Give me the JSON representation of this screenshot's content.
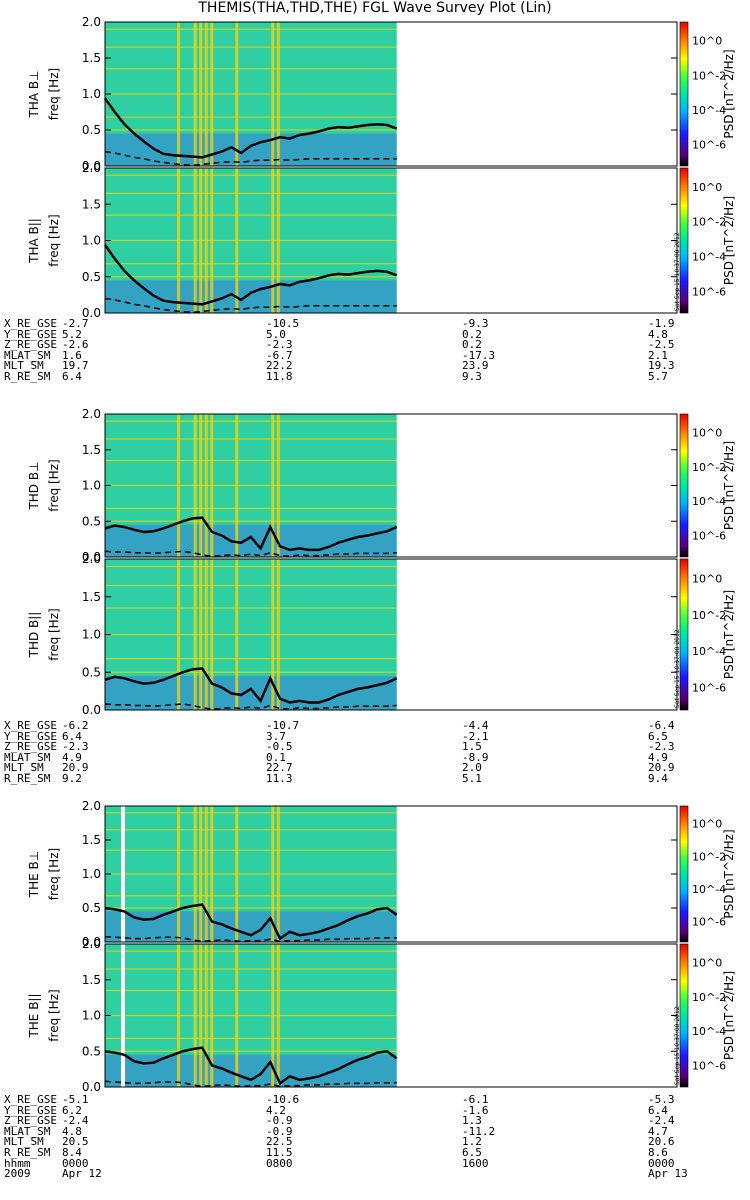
{
  "title": "THEMIS(THA,THD,THE) FGL Wave Survey Plot (Lin)",
  "colorbar": {
    "tick_labels": [
      "10^0",
      "10^-2",
      "10^-4",
      "10^-6"
    ],
    "label": "PSD [nT^2/Hz]"
  },
  "side_stamp": "Sat Sep 15 10:37:08 2012",
  "chart_data": [
    {
      "type": "heatmap",
      "ylabel": "THA B⊥",
      "ylabel2": "freq [Hz]",
      "ylim": [
        0,
        2.0
      ],
      "yticks": [
        "0.0",
        "0.5",
        "1.0",
        "1.5",
        "2.0"
      ],
      "data_extent_fraction": 0.51,
      "solid_line": [
        0.94,
        0.75,
        0.58,
        0.45,
        0.34,
        0.24,
        0.17,
        0.15,
        0.14,
        0.13,
        0.12,
        0.16,
        0.2,
        0.26,
        0.18,
        0.28,
        0.33,
        0.36,
        0.4,
        0.38,
        0.43,
        0.45,
        0.48,
        0.52,
        0.54,
        0.53,
        0.55,
        0.57,
        0.58,
        0.57,
        0.52
      ],
      "dashed_line": [
        0.2,
        0.18,
        0.15,
        0.12,
        0.1,
        0.07,
        0.05,
        0.03,
        0.02,
        0.01,
        0.02,
        0.04,
        0.05,
        0.06,
        0.05,
        0.07,
        0.08,
        0.08,
        0.09,
        0.08,
        0.09,
        0.1,
        0.1,
        0.1,
        0.1,
        0.1,
        0.1,
        0.1,
        0.1,
        0.1,
        0.1
      ]
    },
    {
      "type": "heatmap",
      "ylabel": "THA B||",
      "ylabel2": "freq [Hz]",
      "ylim": [
        0,
        2.0
      ],
      "yticks": [
        "0.0",
        "0.5",
        "1.0",
        "1.5",
        "2.0"
      ],
      "data_extent_fraction": 0.51,
      "solid_line": [
        0.94,
        0.75,
        0.58,
        0.45,
        0.34,
        0.24,
        0.17,
        0.15,
        0.14,
        0.13,
        0.12,
        0.16,
        0.2,
        0.26,
        0.18,
        0.28,
        0.33,
        0.36,
        0.4,
        0.38,
        0.43,
        0.45,
        0.48,
        0.52,
        0.54,
        0.53,
        0.55,
        0.57,
        0.58,
        0.57,
        0.52
      ],
      "dashed_line": [
        0.2,
        0.18,
        0.15,
        0.12,
        0.1,
        0.07,
        0.05,
        0.03,
        0.02,
        0.01,
        0.02,
        0.04,
        0.05,
        0.06,
        0.05,
        0.07,
        0.08,
        0.08,
        0.09,
        0.08,
        0.09,
        0.1,
        0.1,
        0.1,
        0.1,
        0.1,
        0.1,
        0.1,
        0.1,
        0.1,
        0.1
      ]
    },
    {
      "type": "heatmap",
      "ylabel": "THD B⊥",
      "ylabel2": "freq [Hz]",
      "ylim": [
        0,
        2.0
      ],
      "yticks": [
        "0.0",
        "0.5",
        "1.0",
        "1.5",
        "2.0"
      ],
      "data_extent_fraction": 0.51,
      "solid_line": [
        0.4,
        0.44,
        0.42,
        0.38,
        0.35,
        0.36,
        0.4,
        0.45,
        0.5,
        0.54,
        0.55,
        0.35,
        0.3,
        0.22,
        0.2,
        0.28,
        0.12,
        0.42,
        0.15,
        0.1,
        0.12,
        0.1,
        0.1,
        0.14,
        0.2,
        0.24,
        0.28,
        0.3,
        0.33,
        0.36,
        0.42
      ],
      "dashed_line": [
        0.08,
        0.07,
        0.07,
        0.06,
        0.06,
        0.05,
        0.06,
        0.07,
        0.08,
        0.06,
        0.03,
        0.01,
        0.02,
        0.03,
        0.02,
        0.04,
        0.02,
        0.06,
        0.02,
        0.01,
        0.03,
        0.02,
        0.02,
        0.03,
        0.04,
        0.04,
        0.05,
        0.05,
        0.05,
        0.05,
        0.06
      ]
    },
    {
      "type": "heatmap",
      "ylabel": "THD B||",
      "ylabel2": "freq [Hz]",
      "ylim": [
        0,
        2.0
      ],
      "yticks": [
        "0.0",
        "0.5",
        "1.0",
        "1.5",
        "2.0"
      ],
      "data_extent_fraction": 0.51,
      "solid_line": [
        0.4,
        0.44,
        0.42,
        0.38,
        0.35,
        0.36,
        0.4,
        0.45,
        0.5,
        0.54,
        0.55,
        0.35,
        0.3,
        0.22,
        0.2,
        0.28,
        0.12,
        0.42,
        0.15,
        0.1,
        0.12,
        0.1,
        0.1,
        0.14,
        0.2,
        0.24,
        0.28,
        0.3,
        0.33,
        0.36,
        0.42
      ],
      "dashed_line": [
        0.08,
        0.07,
        0.07,
        0.06,
        0.06,
        0.05,
        0.06,
        0.07,
        0.08,
        0.06,
        0.03,
        0.01,
        0.02,
        0.03,
        0.02,
        0.04,
        0.02,
        0.06,
        0.02,
        0.01,
        0.03,
        0.02,
        0.02,
        0.03,
        0.04,
        0.04,
        0.05,
        0.05,
        0.05,
        0.05,
        0.06
      ]
    },
    {
      "type": "heatmap",
      "ylabel": "THE B⊥",
      "ylabel2": "freq [Hz]",
      "ylim": [
        0,
        2.0
      ],
      "yticks": [
        "0.0",
        "0.5",
        "1.0",
        "1.5",
        "2.0"
      ],
      "data_extent_fraction": 0.51,
      "solid_line": [
        0.5,
        0.48,
        0.45,
        0.36,
        0.33,
        0.34,
        0.4,
        0.45,
        0.5,
        0.53,
        0.55,
        0.3,
        0.26,
        0.2,
        0.15,
        0.1,
        0.18,
        0.35,
        0.05,
        0.15,
        0.1,
        0.12,
        0.15,
        0.2,
        0.25,
        0.32,
        0.38,
        0.42,
        0.48,
        0.5,
        0.4
      ],
      "dashed_line": [
        0.08,
        0.07,
        0.06,
        0.05,
        0.05,
        0.06,
        0.07,
        0.07,
        0.06,
        0.03,
        0.01,
        0.02,
        0.03,
        0.02,
        0.01,
        0.02,
        0.02,
        0.04,
        0.01,
        0.02,
        0.02,
        0.03,
        0.03,
        0.04,
        0.04,
        0.05,
        0.05,
        0.05,
        0.06,
        0.06,
        0.06
      ]
    },
    {
      "type": "heatmap",
      "ylabel": "THE B||",
      "ylabel2": "freq [Hz]",
      "ylim": [
        0,
        2.0
      ],
      "yticks": [
        "0.0",
        "0.5",
        "1.0",
        "1.5",
        "2.0"
      ],
      "data_extent_fraction": 0.51,
      "solid_line": [
        0.5,
        0.48,
        0.45,
        0.36,
        0.33,
        0.34,
        0.4,
        0.45,
        0.5,
        0.53,
        0.55,
        0.3,
        0.26,
        0.2,
        0.15,
        0.1,
        0.18,
        0.35,
        0.05,
        0.15,
        0.1,
        0.12,
        0.15,
        0.2,
        0.25,
        0.32,
        0.38,
        0.42,
        0.48,
        0.5,
        0.4
      ],
      "dashed_line": [
        0.08,
        0.07,
        0.06,
        0.05,
        0.05,
        0.06,
        0.07,
        0.07,
        0.06,
        0.03,
        0.01,
        0.02,
        0.03,
        0.02,
        0.01,
        0.02,
        0.02,
        0.04,
        0.01,
        0.02,
        0.02,
        0.03,
        0.03,
        0.04,
        0.04,
        0.05,
        0.05,
        0.05,
        0.06,
        0.06,
        0.06
      ]
    }
  ],
  "ephemeris": [
    {
      "rows": [
        {
          "label": "X_RE_GSE",
          "values": [
            "-2.7",
            "-10.5",
            "-9.3",
            "-1.9"
          ]
        },
        {
          "label": "Y_RE_GSE",
          "values": [
            "5.2",
            "5.0",
            "0.2",
            "4.8"
          ]
        },
        {
          "label": "Z_RE_GSE",
          "values": [
            "-2.6",
            "-2.3",
            "0.2",
            "-2.5"
          ]
        },
        {
          "label": "MLAT_SM",
          "values": [
            "1.6",
            "-6.7",
            "-17.3",
            "2.1"
          ]
        },
        {
          "label": "MLT_SM",
          "values": [
            "19.7",
            "22.2",
            "23.9",
            "19.3"
          ]
        },
        {
          "label": "R_RE_SM",
          "values": [
            "6.4",
            "11.8",
            "9.3",
            "5.7"
          ]
        }
      ]
    },
    {
      "rows": [
        {
          "label": "X_RE_GSE",
          "values": [
            "-6.2",
            "-10.7",
            "-4.4",
            "-6.4"
          ]
        },
        {
          "label": "Y_RE_GSE",
          "values": [
            "6.4",
            "3.7",
            "-2.1",
            "6.5"
          ]
        },
        {
          "label": "Z_RE_GSE",
          "values": [
            "-2.3",
            "-0.5",
            "1.5",
            "-2.3"
          ]
        },
        {
          "label": "MLAT_SM",
          "values": [
            "4.9",
            "0.1",
            "-8.9",
            "4.9"
          ]
        },
        {
          "label": "MLT_SM",
          "values": [
            "20.9",
            "22.7",
            "2.0",
            "20.9"
          ]
        },
        {
          "label": "R_RE_SM",
          "values": [
            "9.2",
            "11.3",
            "5.1",
            "9.4"
          ]
        }
      ]
    },
    {
      "rows": [
        {
          "label": "X_RE_GSE",
          "values": [
            "-5.1",
            "-10.6",
            "-6.1",
            "-5.3"
          ]
        },
        {
          "label": "Y_RE_GSE",
          "values": [
            "6.2",
            "4.2",
            "-1.6",
            "6.4"
          ]
        },
        {
          "label": "Z_RE_GSE",
          "values": [
            "-2.4",
            "-0.9",
            "1.3",
            "-2.4"
          ]
        },
        {
          "label": "MLAT_SM",
          "values": [
            "4.8",
            "-0.9",
            "-11.2",
            "4.7"
          ]
        },
        {
          "label": "MLT_SM",
          "values": [
            "20.5",
            "22.5",
            "1.2",
            "20.6"
          ]
        },
        {
          "label": "R_RE_SM",
          "values": [
            "8.4",
            "11.5",
            "6.5",
            "8.6"
          ]
        },
        {
          "label": "hhmm",
          "values": [
            "0000",
            "0800",
            "1600",
            "0000"
          ]
        },
        {
          "label": "2009",
          "values": [
            "Apr 12",
            "",
            "",
            "Apr 13"
          ]
        }
      ]
    }
  ],
  "colors": {
    "background_spectrum": "#2ecfa0",
    "line": "#000000"
  }
}
